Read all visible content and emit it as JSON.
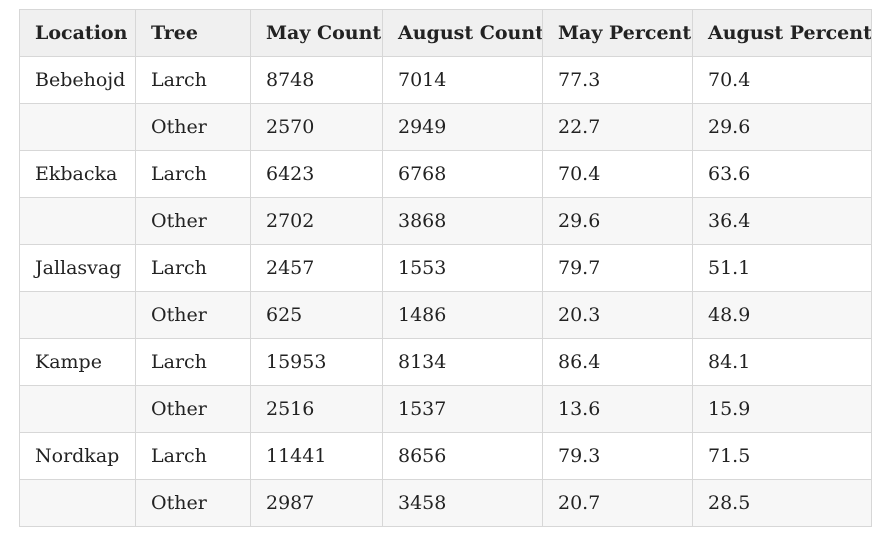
{
  "table": {
    "headers": [
      "Location",
      "Tree",
      "May Count",
      "August Count",
      "May Percent",
      "August Percent"
    ],
    "rows": [
      [
        "Bebehojd",
        "Larch",
        "8748",
        "7014",
        "77.3",
        "70.4"
      ],
      [
        "",
        "Other",
        "2570",
        "2949",
        "22.7",
        "29.6"
      ],
      [
        "Ekbacka",
        "Larch",
        "6423",
        "6768",
        "70.4",
        "63.6"
      ],
      [
        "",
        "Other",
        "2702",
        "3868",
        "29.6",
        "36.4"
      ],
      [
        "Jallasvag",
        "Larch",
        "2457",
        "1553",
        "79.7",
        "51.1"
      ],
      [
        "",
        "Other",
        "625",
        "1486",
        "20.3",
        "48.9"
      ],
      [
        "Kampe",
        "Larch",
        "15953",
        "8134",
        "86.4",
        "84.1"
      ],
      [
        "",
        "Other",
        "2516",
        "1537",
        "13.6",
        "15.9"
      ],
      [
        "Nordkap",
        "Larch",
        "11441",
        "8656",
        "79.3",
        "71.5"
      ],
      [
        "",
        "Other",
        "2987",
        "3458",
        "20.7",
        "28.5"
      ]
    ]
  }
}
